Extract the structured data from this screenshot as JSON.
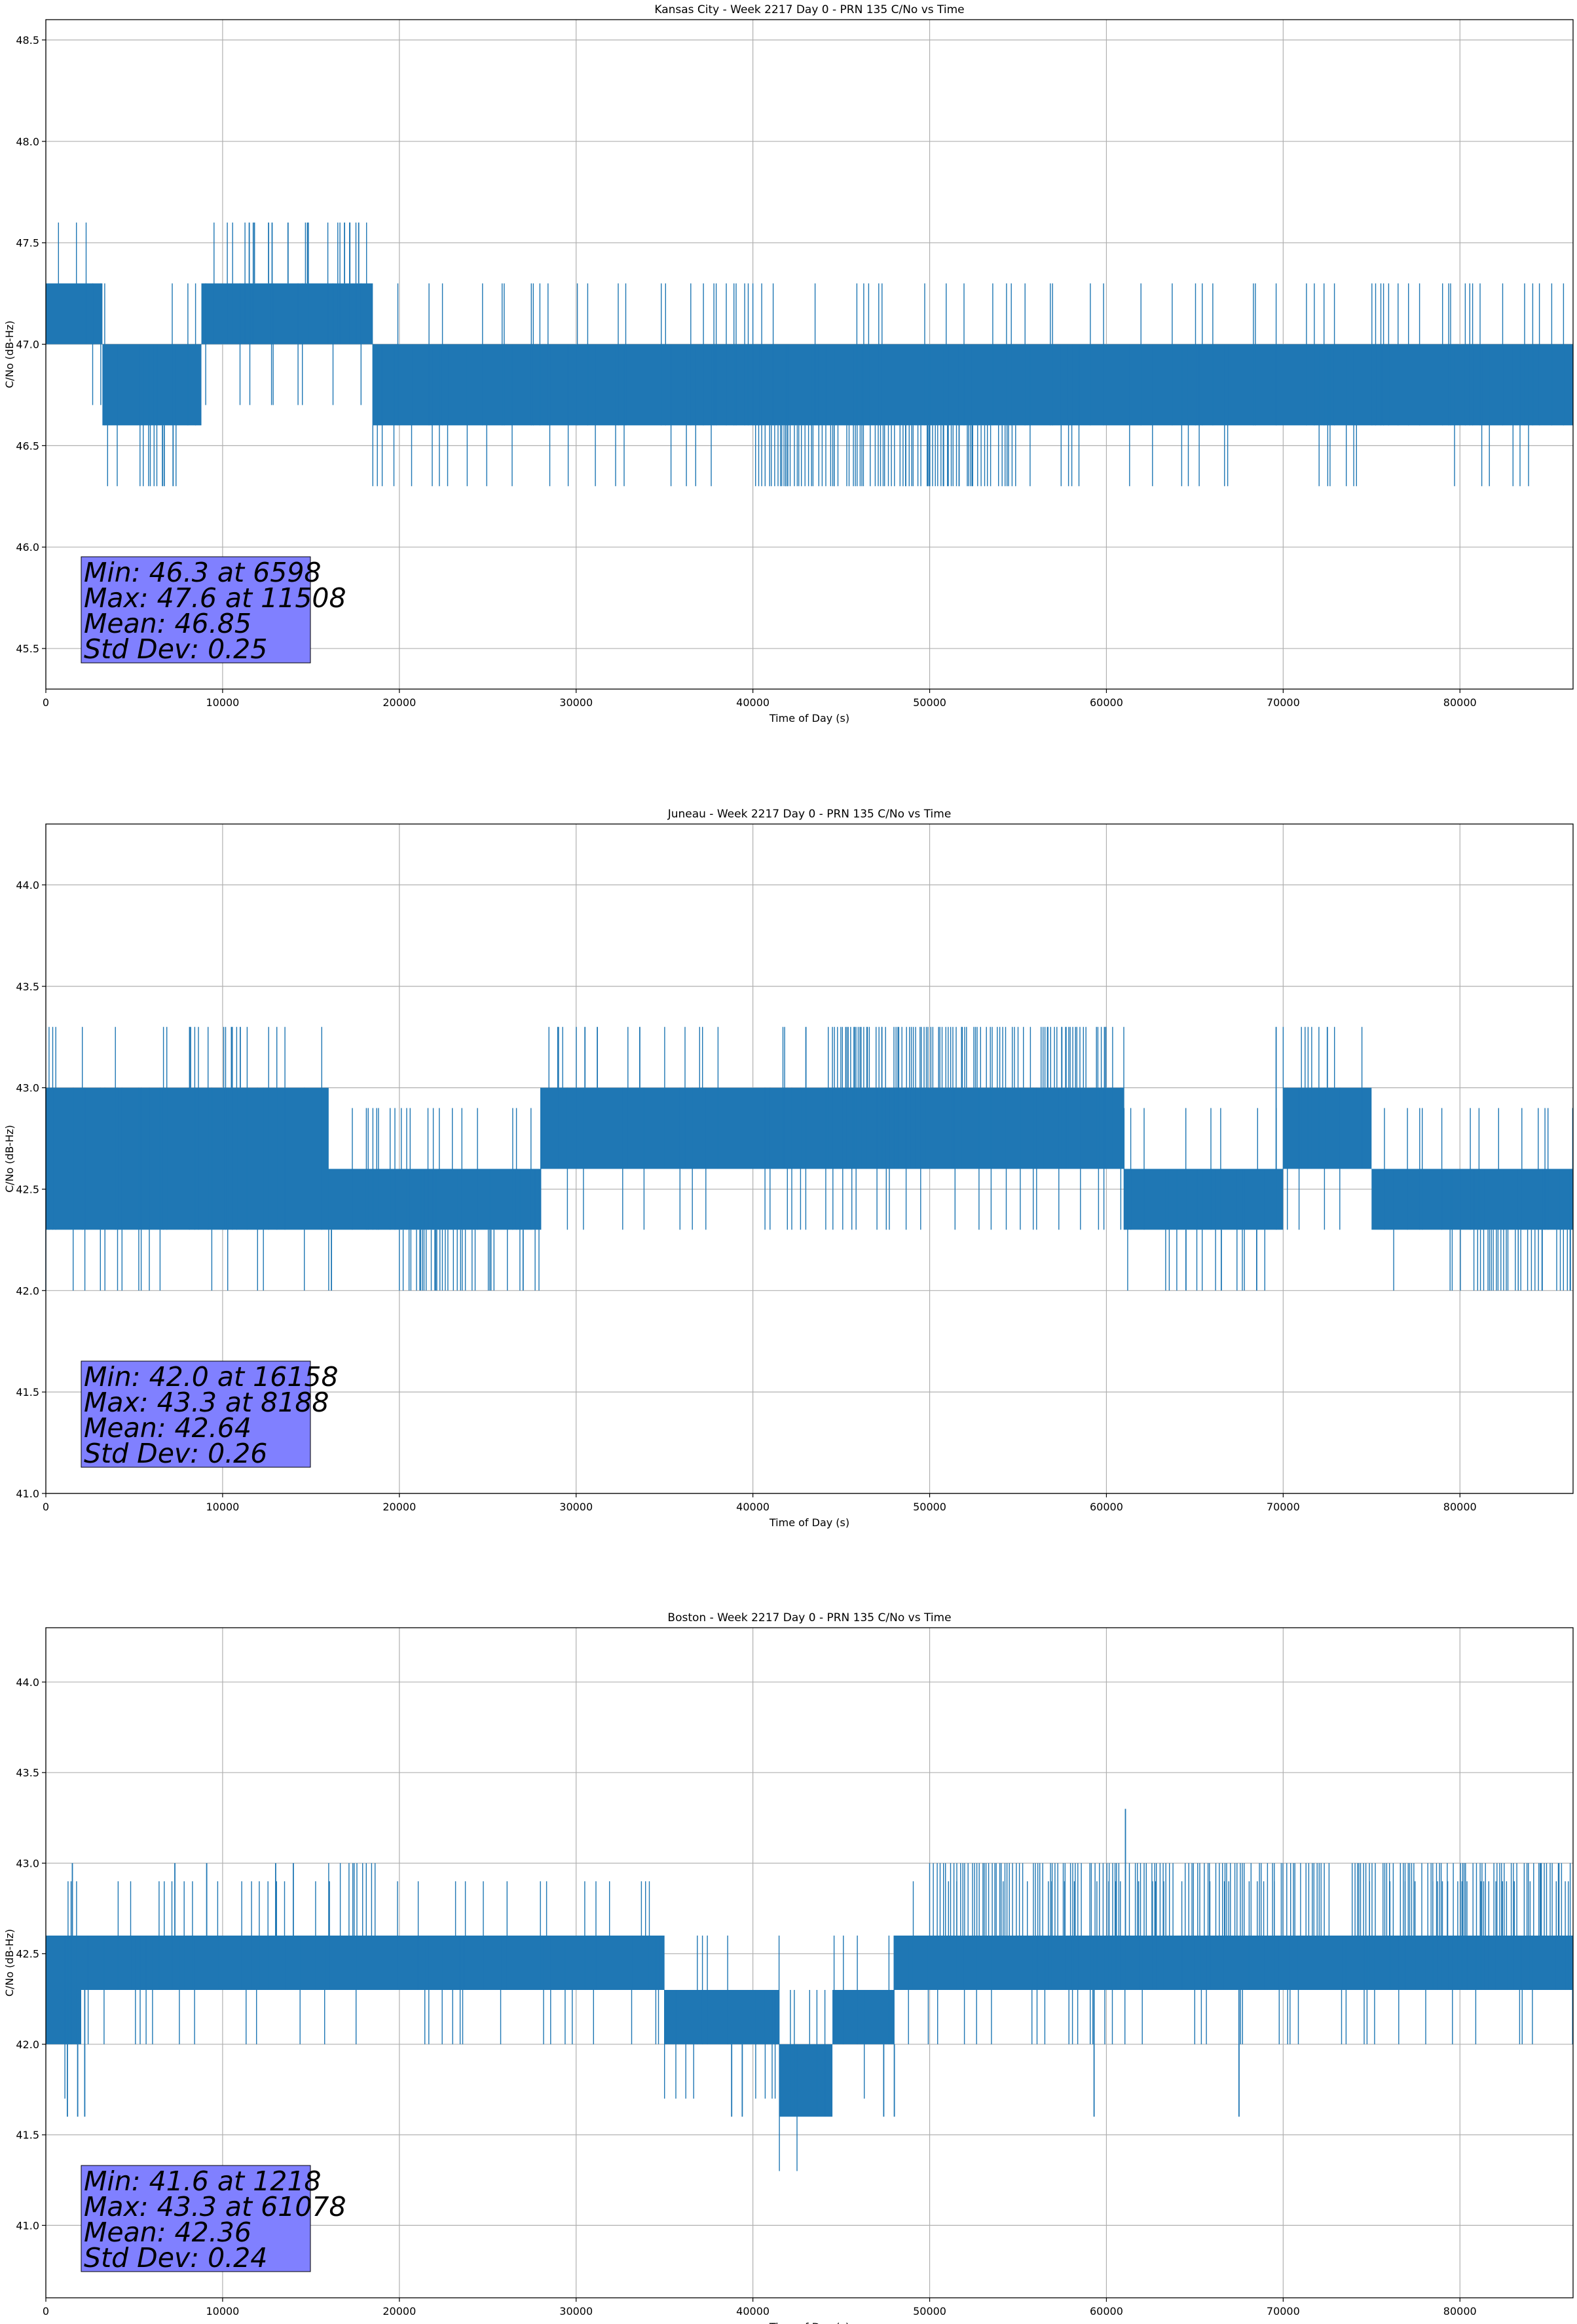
{
  "series_color": "#1f77b4",
  "stats_box_color": "#8080ff",
  "chart_data": [
    {
      "type": "line",
      "title": "Kansas City - Week 2217 Day 0 - PRN 135 C/No vs Time",
      "xlabel": "Time of Day (s)",
      "ylabel": "C/No (dB-Hz)",
      "xlim": [
        0,
        86400
      ],
      "ylim": [
        45.3,
        48.6
      ],
      "xticks": [
        0,
        10000,
        20000,
        30000,
        40000,
        50000,
        60000,
        70000,
        80000
      ],
      "yticks": [
        45.5,
        46.0,
        46.5,
        47.0,
        47.5,
        48.0,
        48.5
      ],
      "grid": true,
      "segments": [
        {
          "x0": 0,
          "x1": 3200,
          "core": [
            47.0,
            47.3
          ],
          "mode": "dense"
        },
        {
          "x0": 3200,
          "x1": 8800,
          "core": [
            46.6,
            47.0
          ],
          "mode": "dense"
        },
        {
          "x0": 8800,
          "x1": 18500,
          "core": [
            47.0,
            47.3
          ],
          "mode": "dense"
        },
        {
          "x0": 18500,
          "x1": 40500,
          "core": [
            46.6,
            47.0
          ],
          "mode": "dense"
        },
        {
          "x0": 40500,
          "x1": 86400,
          "core": [
            46.6,
            47.0
          ],
          "mode": "dense"
        }
      ],
      "spikes": [
        {
          "x": 11508,
          "y": 47.6
        },
        {
          "x": 11800,
          "y": 47.6
        },
        {
          "x": 12600,
          "y": 47.6
        },
        {
          "x": 12800,
          "y": 47.6
        },
        {
          "x": 13700,
          "y": 47.6
        },
        {
          "x": 14800,
          "y": 47.6
        },
        {
          "x": 16900,
          "y": 47.6
        },
        {
          "x": 17200,
          "y": 47.6
        },
        {
          "x": 17700,
          "y": 47.6
        },
        {
          "x": 6598,
          "y": 46.3
        },
        {
          "x": 7200,
          "y": 46.3
        },
        {
          "x": 6700,
          "y": 46.3
        }
      ],
      "lowband": {
        "x0": 40500,
        "x1": 55000,
        "y": 46.3
      },
      "stats": [
        "Min: 46.3 at 6598",
        "Max: 47.6 at 11508",
        "Mean: 46.85",
        "Std Dev: 0.25"
      ]
    },
    {
      "type": "line",
      "title": "Juneau - Week 2217 Day 0 - PRN 135 C/No vs Time",
      "xlabel": "Time of Day (s)",
      "ylabel": "C/No (dB-Hz)",
      "xlim": [
        0,
        86400
      ],
      "ylim": [
        41.0,
        44.3
      ],
      "xticks": [
        0,
        10000,
        20000,
        30000,
        40000,
        50000,
        60000,
        70000,
        80000
      ],
      "yticks": [
        41.0,
        41.5,
        42.0,
        42.5,
        43.0,
        43.5,
        44.0
      ],
      "grid": true,
      "segments": [
        {
          "x0": 0,
          "x1": 16000,
          "core": [
            42.3,
            43.0
          ],
          "mode": "dense"
        },
        {
          "x0": 16000,
          "x1": 28000,
          "core": [
            42.3,
            42.6
          ],
          "mode": "dense"
        },
        {
          "x0": 28000,
          "x1": 61000,
          "core": [
            42.6,
            43.0
          ],
          "mode": "dense"
        },
        {
          "x0": 61000,
          "x1": 70000,
          "core": [
            42.3,
            42.6
          ],
          "mode": "dense"
        },
        {
          "x0": 70000,
          "x1": 75000,
          "core": [
            42.6,
            43.0
          ],
          "mode": "dense"
        },
        {
          "x0": 75000,
          "x1": 86400,
          "core": [
            42.3,
            42.6
          ],
          "mode": "dense"
        }
      ],
      "spikes": [
        {
          "x": 8188,
          "y": 43.3
        },
        {
          "x": 10500,
          "y": 43.3
        },
        {
          "x": 11000,
          "y": 43.3
        },
        {
          "x": 29000,
          "y": 43.3
        },
        {
          "x": 30500,
          "y": 43.3
        },
        {
          "x": 31200,
          "y": 43.3
        },
        {
          "x": 33600,
          "y": 43.3
        },
        {
          "x": 43000,
          "y": 43.3
        },
        {
          "x": 72500,
          "y": 43.3
        },
        {
          "x": 69600,
          "y": 43.3
        },
        {
          "x": 16158,
          "y": 42.0
        },
        {
          "x": 27000,
          "y": 42.0
        },
        {
          "x": 64500,
          "y": 42.0
        },
        {
          "x": 66500,
          "y": 42.0
        },
        {
          "x": 68500,
          "y": 42.0
        }
      ],
      "highband": {
        "x0": 44500,
        "x1": 60000,
        "y": 43.3
      },
      "lowband": {
        "x0": 20000,
        "x1": 25500,
        "y": 42.0
      },
      "lowband2": {
        "x0": 81000,
        "x1": 86400,
        "y": 42.0
      },
      "stats": [
        "Min: 42.0 at 16158",
        "Max: 43.3 at 8188",
        "Mean: 42.64",
        "Std Dev: 0.26"
      ]
    },
    {
      "type": "line",
      "title": "Boston - Week 2217 Day 0 - PRN 135 C/No vs Time",
      "xlabel": "Time of Day (s)",
      "ylabel": "C/No (dB-Hz)",
      "xlim": [
        0,
        86400
      ],
      "ylim": [
        40.6,
        44.3
      ],
      "xticks": [
        0,
        10000,
        20000,
        30000,
        40000,
        50000,
        60000,
        70000,
        80000
      ],
      "yticks": [
        41.0,
        41.5,
        42.0,
        42.5,
        43.0,
        43.5,
        44.0
      ],
      "grid": true,
      "segments": [
        {
          "x0": 0,
          "x1": 2000,
          "core": [
            42.0,
            42.6
          ],
          "mode": "dense"
        },
        {
          "x0": 2000,
          "x1": 35000,
          "core": [
            42.3,
            42.6
          ],
          "mode": "dense"
        },
        {
          "x0": 35000,
          "x1": 41500,
          "core": [
            42.0,
            42.3
          ],
          "mode": "dense"
        },
        {
          "x0": 41500,
          "x1": 44500,
          "core": [
            41.6,
            42.0
          ],
          "mode": "dense"
        },
        {
          "x0": 44500,
          "x1": 48000,
          "core": [
            42.0,
            42.3
          ],
          "mode": "dense"
        },
        {
          "x0": 48000,
          "x1": 86400,
          "core": [
            42.3,
            42.6
          ],
          "mode": "dense"
        }
      ],
      "spikes": [
        {
          "x": 1218,
          "y": 41.6
        },
        {
          "x": 1800,
          "y": 41.6
        },
        {
          "x": 2200,
          "y": 41.6
        },
        {
          "x": 61078,
          "y": 43.3
        },
        {
          "x": 1500,
          "y": 43.0
        },
        {
          "x": 7300,
          "y": 43.0
        },
        {
          "x": 9100,
          "y": 43.0
        },
        {
          "x": 13000,
          "y": 43.0
        },
        {
          "x": 14000,
          "y": 43.0
        },
        {
          "x": 59300,
          "y": 41.6
        },
        {
          "x": 67500,
          "y": 41.6
        },
        {
          "x": 84600,
          "y": 43.0
        },
        {
          "x": 85600,
          "y": 43.0
        },
        {
          "x": 38800,
          "y": 41.6
        },
        {
          "x": 39400,
          "y": 41.6
        },
        {
          "x": 47400,
          "y": 41.6
        },
        {
          "x": 48000,
          "y": 41.6
        }
      ],
      "highband": {
        "x0": 16000,
        "x1": 18800,
        "y": 43.0
      },
      "highband2": {
        "x0": 50000,
        "x1": 86400,
        "y": 43.0
      },
      "stats": [
        "Min: 41.6 at 1218",
        "Max: 43.3 at 61078",
        "Mean: 42.36",
        "Std Dev: 0.24"
      ]
    }
  ]
}
